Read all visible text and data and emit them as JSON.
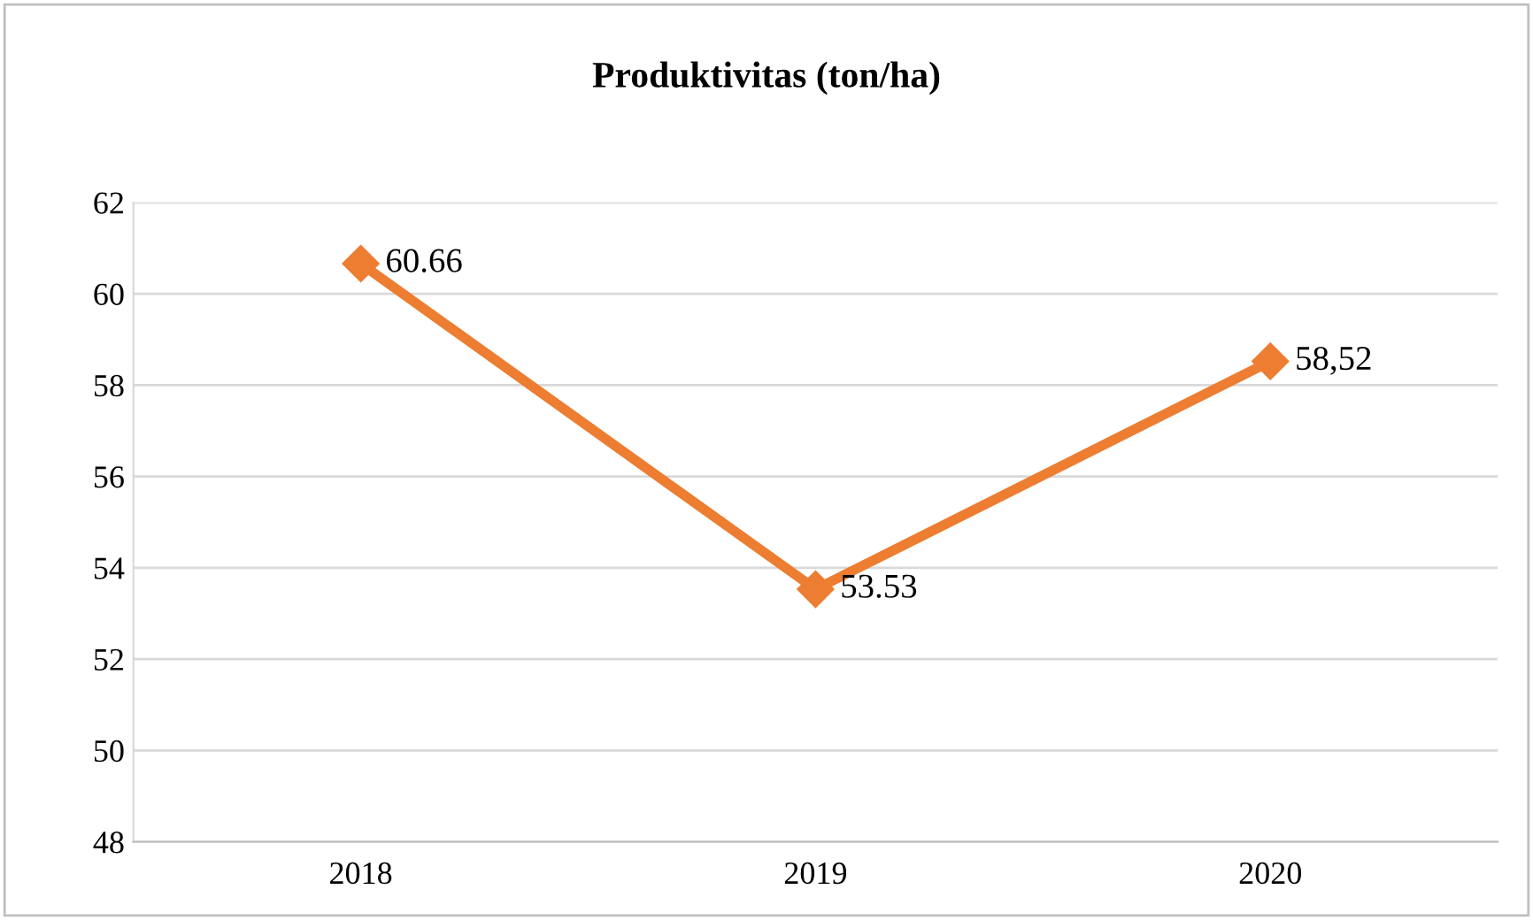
{
  "chart_data": {
    "type": "line",
    "title": "Produktivitas (ton/ha)",
    "categories": [
      "2018",
      "2019",
      "2020"
    ],
    "series": [
      {
        "color": "#ed7d31",
        "values": [
          60.66,
          53.53,
          58.52
        ],
        "value_labels": [
          "60.66",
          "53.53",
          "58,52"
        ]
      }
    ],
    "ylim": [
      48,
      62
    ],
    "yticks": [
      48,
      50,
      52,
      54,
      56,
      58,
      60,
      62
    ],
    "grid": "y",
    "marker": "diamond",
    "line_style": "solid",
    "legend": false
  }
}
